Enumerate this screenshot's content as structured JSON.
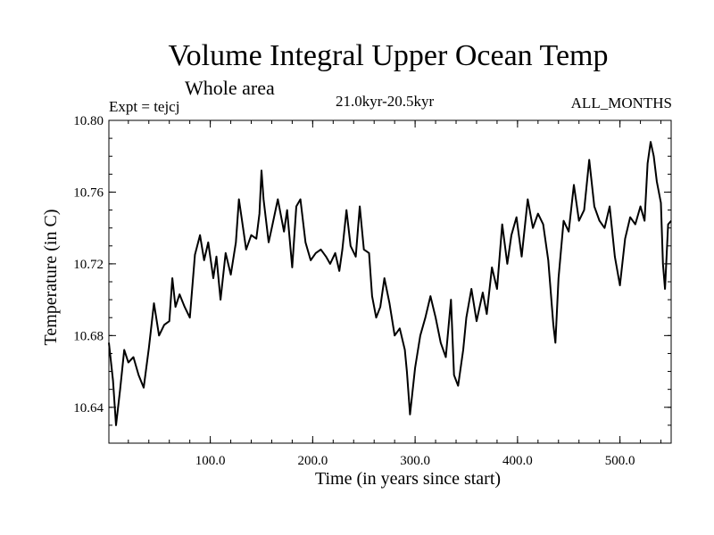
{
  "header": {
    "title": "Volume Integral Upper Ocean Temp",
    "subtitle": "Whole area",
    "experiment": "Expt = tejcj",
    "period": "21.0kyr-20.5kyr",
    "months": "ALL_MONTHS"
  },
  "chart_data": {
    "type": "line",
    "title": "Volume Integral Upper Ocean Temp",
    "subtitle": "Whole area",
    "xlabel": "Time (in years since start)",
    "ylabel": "Temperature (in C)",
    "xlim": [
      1,
      550
    ],
    "ylim": [
      10.62,
      10.8
    ],
    "xticks": [
      100,
      200,
      300,
      400,
      500
    ],
    "xtick_labels": [
      "100.0",
      "200.0",
      "300.0",
      "400.0",
      "500.0"
    ],
    "yticks": [
      10.64,
      10.68,
      10.72,
      10.76,
      10.8
    ],
    "ytick_labels": [
      "10.64",
      "10.68",
      "10.72",
      "10.76",
      "10.80"
    ],
    "line_color": "#000000",
    "series": [
      {
        "name": "Volume Integral Upper Ocean Temp",
        "x": [
          1,
          5,
          8,
          12,
          16,
          20,
          25,
          30,
          35,
          40,
          45,
          50,
          55,
          60,
          63,
          66,
          70,
          75,
          80,
          85,
          90,
          94,
          98,
          103,
          106,
          110,
          115,
          120,
          125,
          128,
          131,
          135,
          140,
          145,
          148,
          150,
          152,
          157,
          160,
          166,
          172,
          175,
          180,
          184,
          188,
          193,
          198,
          203,
          208,
          213,
          217,
          222,
          226,
          229,
          233,
          237,
          242,
          246,
          250,
          255,
          258,
          262,
          266,
          270,
          275,
          280,
          285,
          290,
          292,
          295,
          300,
          305,
          310,
          315,
          320,
          325,
          330,
          335,
          338,
          342,
          347,
          350,
          355,
          360,
          366,
          370,
          375,
          380,
          385,
          390,
          394,
          399,
          404,
          410,
          415,
          420,
          425,
          430,
          435,
          437,
          440,
          445,
          450,
          455,
          460,
          465,
          470,
          475,
          480,
          485,
          490,
          495,
          500,
          505,
          510,
          515,
          520,
          524,
          527,
          530,
          533,
          536,
          540,
          542,
          544,
          547,
          550
        ],
        "values": [
          10.676,
          10.655,
          10.63,
          10.65,
          10.672,
          10.665,
          10.668,
          10.658,
          10.651,
          10.673,
          10.698,
          10.68,
          10.686,
          10.688,
          10.712,
          10.696,
          10.703,
          10.696,
          10.69,
          10.725,
          10.736,
          10.722,
          10.732,
          10.712,
          10.724,
          10.7,
          10.726,
          10.714,
          10.732,
          10.756,
          10.744,
          10.728,
          10.736,
          10.734,
          10.748,
          10.772,
          10.756,
          10.732,
          10.74,
          10.756,
          10.738,
          10.75,
          10.718,
          10.752,
          10.756,
          10.732,
          10.722,
          10.726,
          10.728,
          10.724,
          10.72,
          10.726,
          10.716,
          10.728,
          10.75,
          10.73,
          10.724,
          10.752,
          10.728,
          10.726,
          10.702,
          10.69,
          10.696,
          10.712,
          10.698,
          10.68,
          10.684,
          10.672,
          10.66,
          10.636,
          10.662,
          10.68,
          10.69,
          10.702,
          10.69,
          10.676,
          10.668,
          10.7,
          10.658,
          10.652,
          10.672,
          10.69,
          10.706,
          10.688,
          10.704,
          10.692,
          10.718,
          10.706,
          10.742,
          10.72,
          10.736,
          10.746,
          10.724,
          10.756,
          10.74,
          10.748,
          10.742,
          10.722,
          10.686,
          10.676,
          10.712,
          10.744,
          10.738,
          10.764,
          10.744,
          10.75,
          10.778,
          10.752,
          10.744,
          10.74,
          10.752,
          10.724,
          10.708,
          10.734,
          10.746,
          10.742,
          10.752,
          10.744,
          10.776,
          10.788,
          10.78,
          10.766,
          10.754,
          10.72,
          10.706,
          10.742,
          10.744
        ]
      }
    ]
  }
}
